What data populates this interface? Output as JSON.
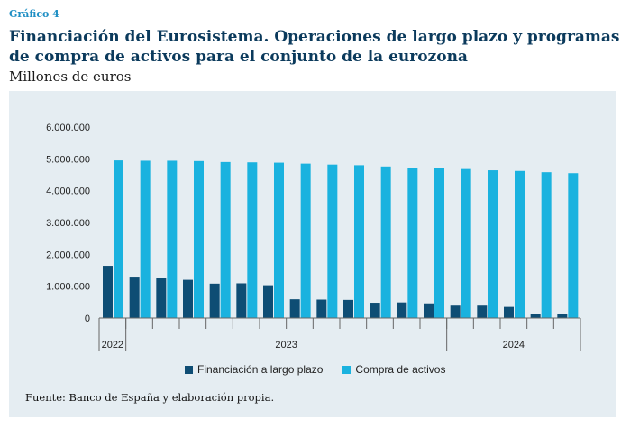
{
  "header": {
    "label": "Gráfico 4",
    "title": "Financiación del Eurosistema. Operaciones de largo plazo y programas de compra de activos para el conjunto de la eurozona",
    "subtitle": "Millones de euros"
  },
  "source": "Fuente: Banco de España y elaboración propia.",
  "colors": {
    "series1": "#0e4d74",
    "series2": "#1ab2df",
    "panel": "#e5edf2"
  },
  "chart_data": {
    "type": "bar",
    "categories": [
      "",
      "",
      "",
      "",
      "",
      "",
      "",
      "",
      "",
      "",
      "",
      "",
      "",
      "",
      "",
      "",
      "",
      ""
    ],
    "year_groups": [
      {
        "label": "2022",
        "start": 0,
        "end": 0
      },
      {
        "label": "2023",
        "start": 1,
        "end": 12
      },
      {
        "label": "2024",
        "start": 13,
        "end": 17
      }
    ],
    "series": [
      {
        "name": "Financiación a largo plazo",
        "color": "#0e4d74",
        "values": [
          1640000,
          1300000,
          1250000,
          1200000,
          1080000,
          1090000,
          1030000,
          590000,
          580000,
          570000,
          480000,
          490000,
          460000,
          390000,
          390000,
          350000,
          130000,
          140000
        ]
      },
      {
        "name": "Compra de activos",
        "color": "#1ab2df",
        "values": [
          4950000,
          4940000,
          4940000,
          4930000,
          4900000,
          4890000,
          4880000,
          4850000,
          4820000,
          4800000,
          4760000,
          4720000,
          4700000,
          4680000,
          4640000,
          4620000,
          4580000,
          4550000
        ]
      }
    ],
    "yticks": [
      "0",
      "1.000.000",
      "2.000.000",
      "3.000.000",
      "4.000.000",
      "5.000.000",
      "6.000.000"
    ],
    "ylim": [
      0,
      6000000
    ],
    "xlabel": "",
    "ylabel": "",
    "legend": "bottom",
    "grid": false
  }
}
